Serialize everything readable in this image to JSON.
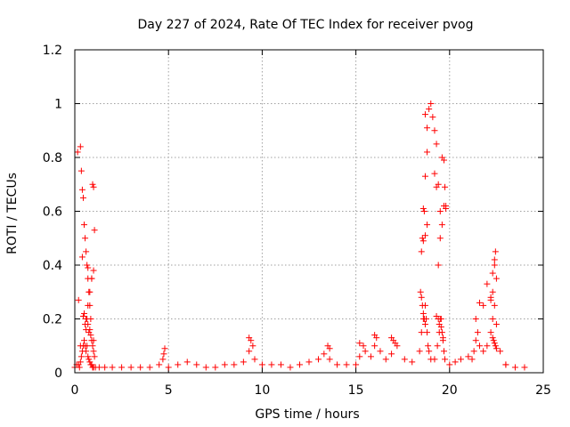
{
  "chart_data": {
    "type": "scatter",
    "title": "Day 227 of 2024, Rate Of TEC Index for receiver pvog",
    "xlabel": "GPS time / hours",
    "ylabel": "ROTI / TECUs",
    "xlim": [
      0,
      25
    ],
    "ylim": [
      0,
      1.2
    ],
    "xticks": [
      "0",
      "5",
      "10",
      "15",
      "20",
      "25"
    ],
    "yticks": [
      "0",
      "0.2",
      "0.4",
      "0.6",
      "0.8",
      "1",
      "1.2"
    ],
    "grid": true,
    "marker": "plus",
    "color": "#ff0000",
    "series": [
      {
        "x": [
          0.0,
          0.1,
          0.2,
          0.25,
          0.3,
          0.35,
          0.4,
          0.45,
          0.5,
          0.55,
          0.6,
          0.65,
          0.7,
          0.75,
          0.8,
          0.85,
          0.9,
          0.95,
          1.0,
          1.1,
          1.3,
          1.6,
          2.0,
          2.5,
          3.0,
          3.5,
          4.0,
          4.5,
          4.7,
          5.0,
          5.5,
          6.0,
          6.5,
          7.0,
          7.5,
          8.0,
          8.5,
          9.0,
          9.3,
          9.6,
          10.0,
          10.5,
          11.0,
          11.5,
          12.0,
          12.5,
          13.0,
          13.3,
          13.6,
          14.0,
          14.5,
          15.0,
          15.2,
          15.5,
          15.8,
          16.0,
          16.3,
          16.6,
          16.9,
          17.2,
          17.6,
          18.0,
          18.4,
          18.5,
          18.6,
          18.7,
          18.75,
          18.8,
          18.85,
          18.9,
          19.0,
          19.2,
          19.35,
          19.45,
          19.55,
          19.65,
          19.7,
          19.75,
          20.0,
          20.3,
          20.6,
          21.0,
          21.3,
          21.4,
          21.6,
          21.8,
          22.0,
          22.2,
          22.3,
          22.4,
          22.5,
          22.7,
          23.0,
          23.5,
          24.0,
          0.15,
          0.3,
          0.35,
          0.4,
          0.45,
          0.5,
          0.55,
          0.6,
          0.65,
          0.7,
          0.75,
          0.8,
          0.85,
          0.9,
          0.95,
          1.0,
          1.05,
          0.6,
          0.7,
          0.8,
          0.9,
          1.0,
          18.45,
          18.55,
          18.65,
          18.7,
          18.8,
          18.9,
          19.0,
          19.1,
          19.2,
          19.3,
          19.4,
          19.5,
          19.6,
          19.7,
          19.8,
          18.5,
          18.6,
          18.7,
          18.8,
          19.4,
          19.5,
          19.6,
          19.7,
          19.75,
          21.4,
          21.6,
          21.8,
          22.0,
          22.2,
          22.3,
          22.4,
          22.45,
          22.2,
          22.3,
          22.4,
          9.3,
          9.4,
          9.5,
          13.5,
          13.6,
          15.2,
          15.4,
          16.0,
          16.1,
          16.9,
          17.0,
          17.1,
          4.8,
          4.75,
          0.45,
          0.5,
          0.55,
          0.6,
          0.65,
          0.7,
          0.75,
          0.8,
          0.85,
          0.9,
          0.95,
          1.0,
          1.05,
          18.5,
          18.55,
          18.6,
          18.65,
          18.7,
          19.3,
          19.4,
          19.45,
          19.5,
          19.55,
          19.6,
          19.65,
          22.3,
          22.35,
          22.4,
          22.45,
          22.5,
          0.2,
          0.3,
          0.4,
          0.7,
          1.0,
          18.6,
          18.7,
          18.8,
          19.2,
          19.3,
          19.8,
          21.2,
          21.5,
          22.5,
          23.0
        ],
        "y": [
          0.02,
          0.03,
          0.03,
          0.02,
          0.04,
          0.06,
          0.08,
          0.1,
          0.12,
          0.1,
          0.08,
          0.1,
          0.06,
          0.05,
          0.04,
          0.03,
          0.03,
          0.02,
          0.02,
          0.02,
          0.02,
          0.02,
          0.02,
          0.02,
          0.02,
          0.02,
          0.02,
          0.03,
          0.05,
          0.02,
          0.03,
          0.04,
          0.03,
          0.02,
          0.02,
          0.03,
          0.03,
          0.04,
          0.08,
          0.05,
          0.03,
          0.03,
          0.03,
          0.02,
          0.03,
          0.04,
          0.05,
          0.07,
          0.05,
          0.03,
          0.03,
          0.03,
          0.06,
          0.08,
          0.06,
          0.1,
          0.08,
          0.05,
          0.07,
          0.1,
          0.05,
          0.04,
          0.08,
          0.15,
          0.2,
          0.25,
          0.2,
          0.15,
          0.1,
          0.08,
          0.05,
          0.05,
          0.1,
          0.15,
          0.2,
          0.12,
          0.08,
          0.05,
          0.03,
          0.04,
          0.05,
          0.06,
          0.08,
          0.12,
          0.1,
          0.08,
          0.1,
          0.15,
          0.2,
          0.25,
          0.18,
          0.08,
          0.03,
          0.02,
          0.02,
          0.82,
          0.84,
          0.75,
          0.68,
          0.65,
          0.55,
          0.5,
          0.45,
          0.4,
          0.35,
          0.3,
          0.25,
          0.2,
          0.35,
          0.7,
          0.69,
          0.53,
          0.2,
          0.25,
          0.3,
          0.35,
          0.38,
          0.3,
          0.5,
          0.6,
          0.73,
          0.82,
          0.98,
          1.0,
          0.95,
          0.9,
          0.85,
          0.7,
          0.6,
          0.8,
          0.79,
          0.62,
          0.45,
          0.49,
          0.51,
          0.55,
          0.4,
          0.5,
          0.55,
          0.62,
          0.69,
          0.2,
          0.26,
          0.25,
          0.33,
          0.27,
          0.37,
          0.42,
          0.45,
          0.28,
          0.3,
          0.4,
          0.13,
          0.12,
          0.1,
          0.1,
          0.09,
          0.11,
          0.1,
          0.14,
          0.13,
          0.13,
          0.12,
          0.11,
          0.09,
          0.07,
          0.21,
          0.22,
          0.18,
          0.16,
          0.2,
          0.18,
          0.15,
          0.16,
          0.14,
          0.12,
          0.1,
          0.08,
          0.06,
          0.28,
          0.25,
          0.22,
          0.2,
          0.18,
          0.21,
          0.2,
          0.18,
          0.2,
          0.17,
          0.15,
          0.13,
          0.13,
          0.12,
          0.11,
          0.1,
          0.09,
          0.27,
          0.1,
          0.43,
          0.39,
          0.12,
          0.61,
          0.96,
          0.91,
          0.74,
          0.69,
          0.61,
          0.05,
          0.15,
          0.35,
          0.03
        ]
      }
    ]
  }
}
